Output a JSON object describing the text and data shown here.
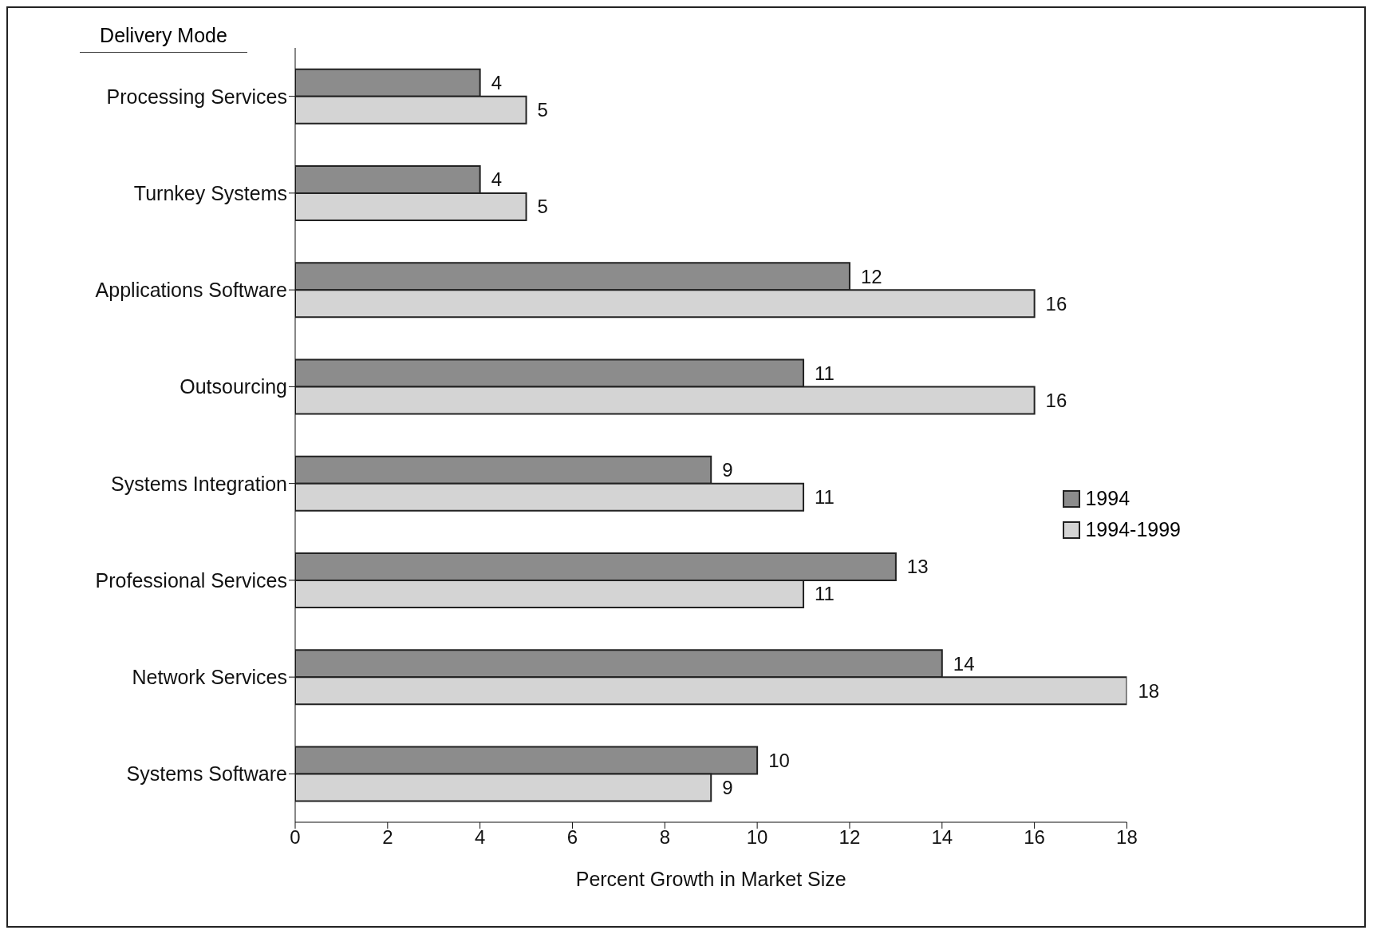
{
  "chart_data": {
    "type": "bar",
    "orientation": "horizontal",
    "ylabel": "Delivery Mode",
    "xlabel": "Percent Growth in Market Size",
    "categories": [
      "Processing Services",
      "Turnkey Systems",
      "Applications Software",
      "Outsourcing",
      "Systems Integration",
      "Professional Services",
      "Network Services",
      "Systems Software"
    ],
    "series": [
      {
        "name": "1994",
        "color": "#8c8c8c",
        "values": [
          4,
          4,
          12,
          11,
          9,
          13,
          14,
          10
        ]
      },
      {
        "name": "1994-1999",
        "color": "#d4d4d4",
        "values": [
          5,
          5,
          16,
          16,
          11,
          11,
          18,
          9
        ]
      }
    ],
    "xlim": [
      0,
      18
    ],
    "xticks": [
      0,
      2,
      4,
      6,
      8,
      10,
      12,
      14,
      16,
      18
    ],
    "data_labels": true,
    "legend": "right",
    "grid": false
  }
}
